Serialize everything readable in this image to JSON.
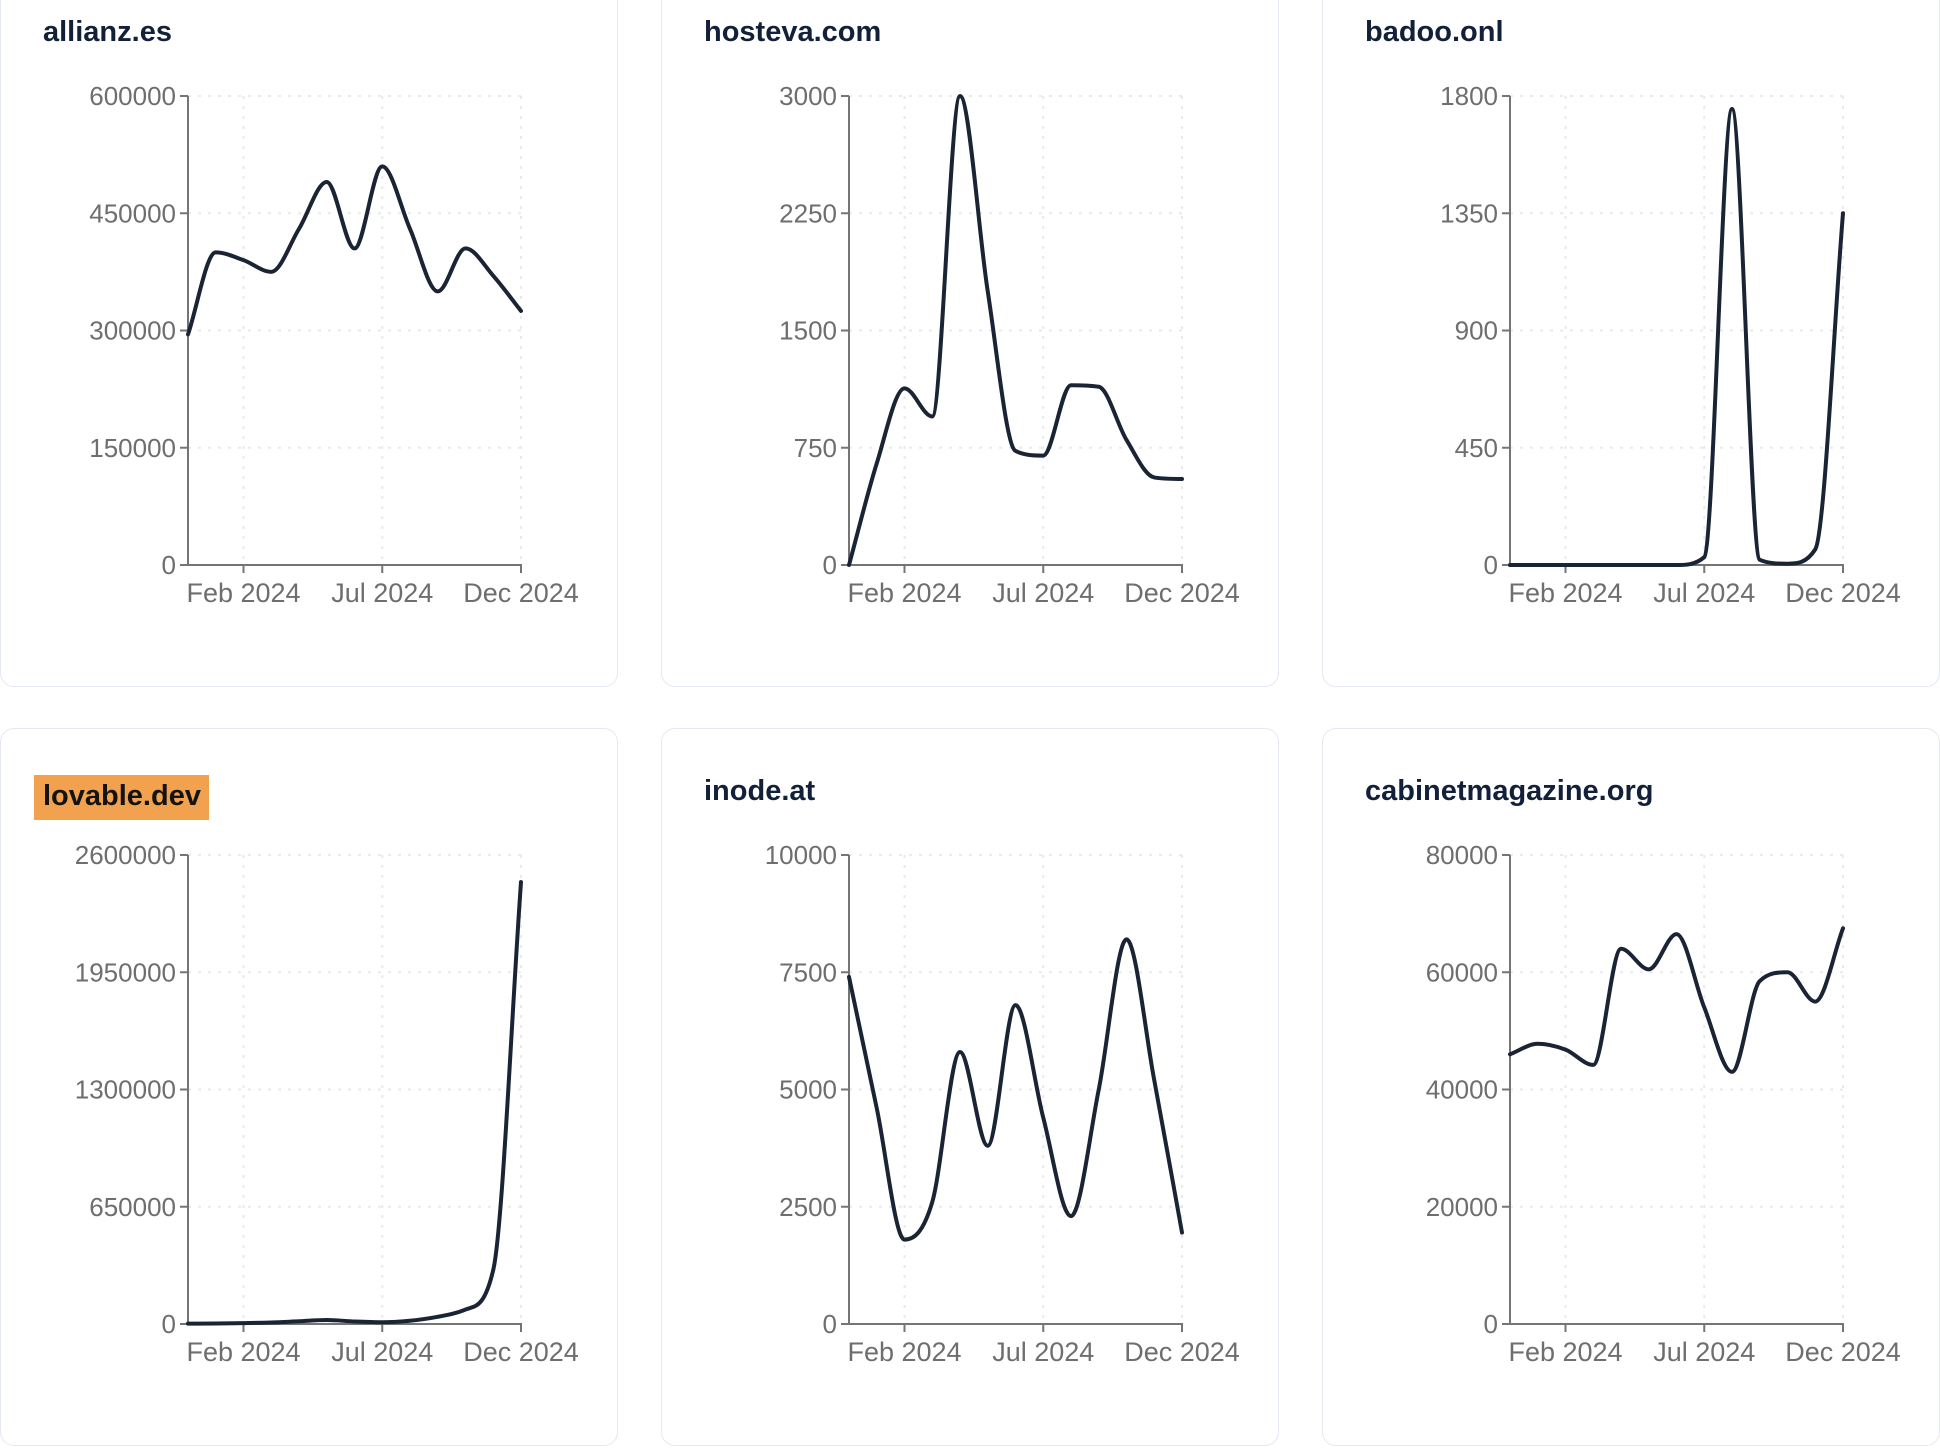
{
  "page": {
    "background_color": "#ffffff"
  },
  "colors": {
    "line": "#1b2434",
    "title": "#13203a",
    "axis": "#757575",
    "tick_label": "#6e6e6e",
    "grid": "#e9eaee",
    "card_border": "#e4e8f1",
    "card_background": "#ffffff",
    "highlight": "#f2a24e",
    "highlight_text": "#131313"
  },
  "chart_data": [
    {
      "type": "line",
      "title": "allianz.es",
      "highlighted": false,
      "x_ticks": [
        "Feb 2024",
        "Jul 2024",
        "Dec 2024"
      ],
      "y_ticks": [
        0,
        150000,
        300000,
        450000,
        600000
      ],
      "ylim": [
        0,
        600000
      ],
      "grid": true,
      "values": [
        295000,
        400000,
        390000,
        375000,
        430000,
        490000,
        405000,
        510000,
        430000,
        350000,
        405000,
        370000,
        325000
      ]
    },
    {
      "type": "line",
      "title": "hosteva.com",
      "highlighted": false,
      "x_ticks": [
        "Feb 2024",
        "Jul 2024",
        "Dec 2024"
      ],
      "y_ticks": [
        0,
        750,
        1500,
        2250,
        3000
      ],
      "ylim": [
        0,
        3000
      ],
      "grid": true,
      "values": [
        0,
        650,
        1130,
        950,
        3000,
        1750,
        730,
        700,
        1150,
        1140,
        800,
        560,
        550
      ]
    },
    {
      "type": "line",
      "title": "badoo.onl",
      "highlighted": false,
      "x_ticks": [
        "Feb 2024",
        "Jul 2024",
        "Dec 2024"
      ],
      "y_ticks": [
        0,
        450,
        900,
        1350,
        1800
      ],
      "ylim": [
        0,
        1800
      ],
      "grid": true,
      "values": [
        0,
        0,
        0,
        0,
        0,
        0,
        0,
        30,
        1750,
        20,
        5,
        60,
        1350
      ]
    },
    {
      "type": "line",
      "title": "lovable.dev",
      "highlighted": true,
      "x_ticks": [
        "Feb 2024",
        "Jul 2024",
        "Dec 2024"
      ],
      "y_ticks": [
        0,
        650000,
        1300000,
        1950000,
        2600000
      ],
      "ylim": [
        0,
        2600000
      ],
      "grid": true,
      "values": [
        2000,
        3000,
        5000,
        8000,
        15000,
        22000,
        14000,
        10000,
        18000,
        40000,
        80000,
        300000,
        2450000
      ]
    },
    {
      "type": "line",
      "title": "inode.at",
      "highlighted": false,
      "x_ticks": [
        "Feb 2024",
        "Jul 2024",
        "Dec 2024"
      ],
      "y_ticks": [
        0,
        2500,
        5000,
        7500,
        10000
      ],
      "ylim": [
        0,
        10000
      ],
      "grid": true,
      "values": [
        7400,
        4600,
        1800,
        2600,
        5800,
        3800,
        6800,
        4400,
        2300,
        5000,
        8200,
        5200,
        1950
      ]
    },
    {
      "type": "line",
      "title": "cabinetmagazine.org",
      "highlighted": false,
      "x_ticks": [
        "Feb 2024",
        "Jul 2024",
        "Dec 2024"
      ],
      "y_ticks": [
        0,
        20000,
        40000,
        60000,
        80000
      ],
      "ylim": [
        0,
        80000
      ],
      "grid": true,
      "values": [
        46000,
        47800,
        46800,
        44200,
        64000,
        60500,
        66500,
        54000,
        43000,
        58500,
        60000,
        55000,
        67500
      ]
    }
  ]
}
